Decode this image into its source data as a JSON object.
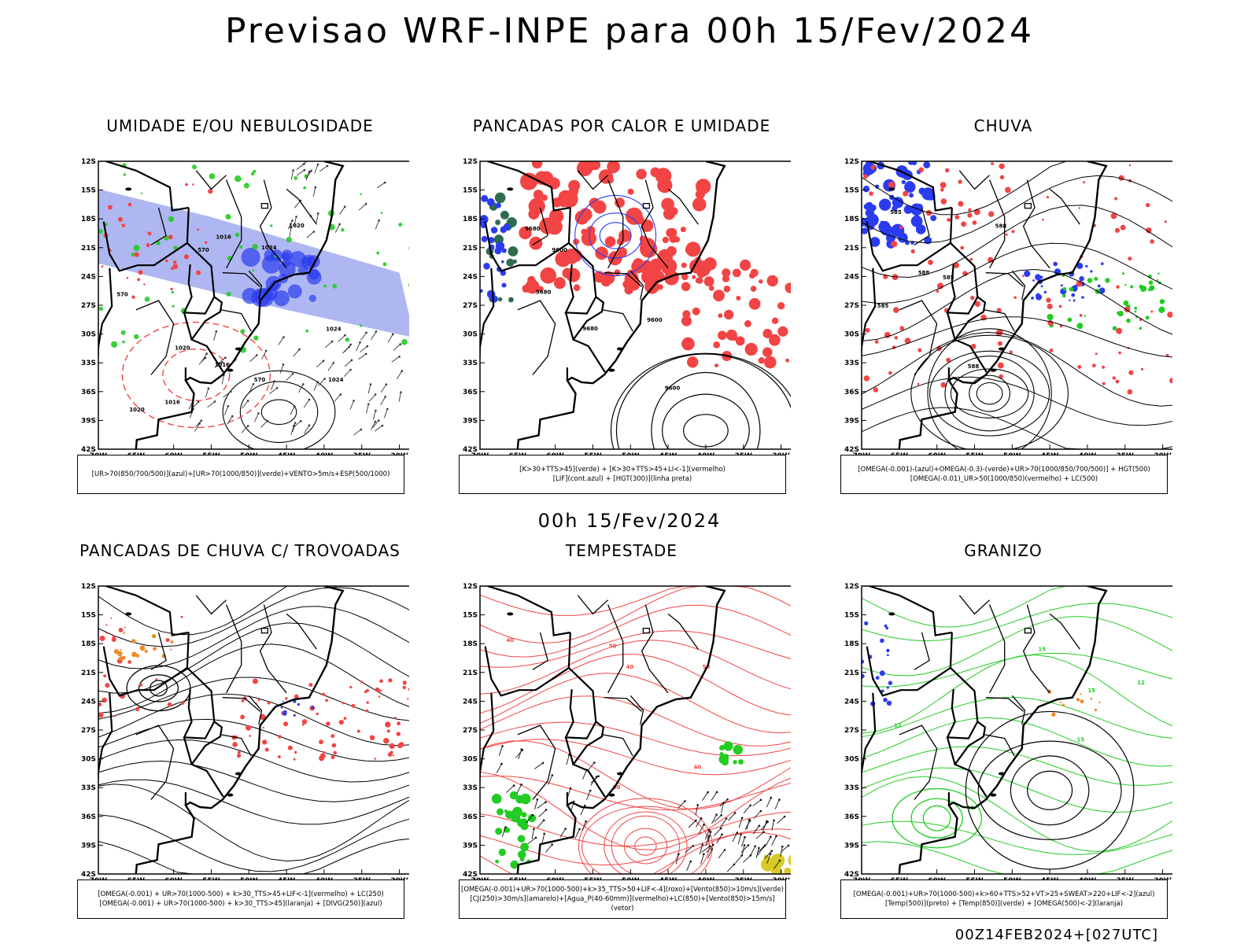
{
  "header": {
    "title": "Previsao WRF-INPE  para 00h 15/Fev/2024",
    "subtitle": "00h 15/Fev/2024",
    "stamp": "00Z14FEB2024+[027UTC]"
  },
  "axes": {
    "lat_labels": [
      "12S",
      "15S",
      "18S",
      "21S",
      "24S",
      "27S",
      "30S",
      "33S",
      "36S",
      "39S",
      "42S"
    ],
    "lon_labels": [
      "70W",
      "65W",
      "60W",
      "55W",
      "50W",
      "45W",
      "40W",
      "35W",
      "30W"
    ]
  },
  "colors": {
    "blue": "#2b3cf0",
    "lightblue": "#9aa5ee",
    "green": "#22cc22",
    "red": "#f24444",
    "darkgreen": "#2e6b4f",
    "orange": "#f08a24",
    "yellow": "#d9c927",
    "black": "#000000"
  },
  "panels": [
    {
      "title": "UMIDADE E/OU NEBULOSIDADE",
      "legend": [
        "[UR>70(850/700/500)](azul)+[UR>70(1000/850)](verde)+VENTO>5m/s+ESP(500/1000)"
      ],
      "style": "umidade",
      "contour_labels": [
        "1016",
        "1020",
        "1024",
        "570"
      ]
    },
    {
      "title": "PANCADAS POR CALOR E UMIDADE",
      "legend": [
        "[K>30+TTS>45](verde) + [K>30+TTS>45+LI<-1](vermelho)",
        "[LIF](cont.azul) + [HGT(300)](linha preta)"
      ],
      "style": "pancadas",
      "contour_labels": [
        "9680",
        "9600"
      ]
    },
    {
      "title": "CHUVA",
      "legend": [
        "[OMEGA(-0.001)-(azul)+OMEGA(-0.3)-(verde)+UR>70(1000/850/700/500)] + HGT(500)",
        "[OMEGA(-0.01)_UR>50(1000/850)(vermelho) + LC(500)"
      ],
      "style": "chuva",
      "contour_labels": [
        "585",
        "588"
      ]
    },
    {
      "title": "PANCADAS DE CHUVA C/ TROVOADAS",
      "legend": [
        "[OMEGA(-0.001) + UR>70(1000-500) + k>30_TTS>45+LIF<-1](vermelho) + LC(250)",
        "[OMEGA(-0.001) + UR>70(1000-500) + k>30_TTS>45](laranja) + [DIVG(250)](azul)"
      ],
      "style": "trovoadas",
      "contour_labels": []
    },
    {
      "title": "TEMPESTADE",
      "legend": [
        "[OMEGA(-0.001)+UR>70(1000-500)+k>35_TTS>50+LIF<-4](roxo)+[Vento(850)>10m/s](verde)",
        "[CJ(250)>30m/s](amarelo)+[Agua_P(40-60mm)](vermelho)+LC(850)+[Vento(850)>15m/s](vetor)"
      ],
      "style": "tempestade",
      "contour_labels": [
        "40",
        "50"
      ]
    },
    {
      "title": "GRANIZO",
      "legend": [
        "[OMEGA(-0.001)+UR>70(1000-500)+k>60+TTS>52+VT>25+SWEAT>220+LIF<-2](azul)",
        "[Temp(500)](preto) + [Temp(850)](verde) + [OMEGA(500)<-2](laranja)"
      ],
      "style": "granizo",
      "contour_labels": [
        "15",
        "12"
      ]
    }
  ]
}
